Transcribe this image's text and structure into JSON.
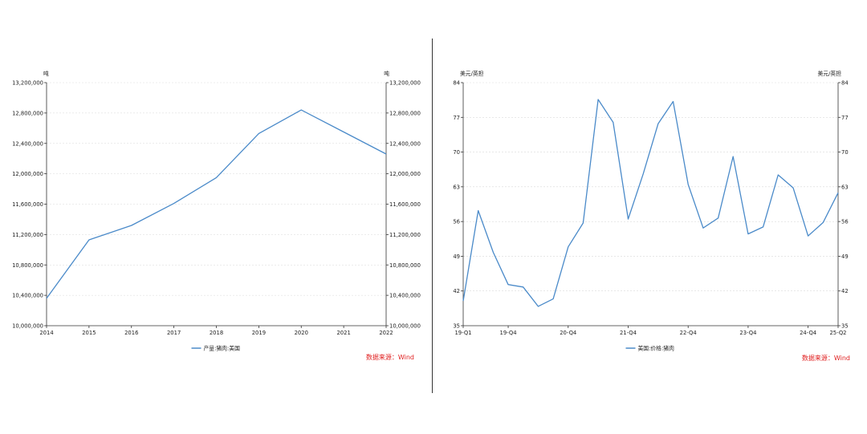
{
  "colors": {
    "line": "#4a8ac9",
    "axis": "#333333",
    "grid": "#d9d9d9",
    "source": "#e02020",
    "text": "#222222"
  },
  "chart_data": [
    {
      "type": "line",
      "left_unit": "吨",
      "right_unit": "吨",
      "x": [
        "2014",
        "2015",
        "2016",
        "2017",
        "2018",
        "2019",
        "2020",
        "2021",
        "2022"
      ],
      "series": [
        {
          "name": "产量:猪肉:美国",
          "values": [
            10360000,
            11130000,
            11320000,
            11610000,
            11950000,
            12530000,
            12840000,
            12550000,
            12260000
          ]
        }
      ],
      "ylim": [
        10000000,
        13200000
      ],
      "yticks": [
        10000000,
        10400000,
        10800000,
        11200000,
        11600000,
        12000000,
        12400000,
        12800000,
        13200000
      ],
      "ytick_labels": [
        "10,000,000",
        "10,400,000",
        "10,800,000",
        "11,200,000",
        "11,600,000",
        "12,000,000",
        "12,400,000",
        "12,800,000",
        "13,200,000"
      ],
      "legend": "bottom-center",
      "source": "数据来源：Wind",
      "grid": true
    },
    {
      "type": "line",
      "left_unit": "美元/英担",
      "right_unit": "美元/英担",
      "x_tick_labels": [
        "19-Q1",
        "19-Q4",
        "20-Q4",
        "21-Q4",
        "22-Q4",
        "23-Q4",
        "24-Q4",
        "25-Q2"
      ],
      "x_tick_index": [
        0,
        3,
        7,
        11,
        15,
        19,
        23,
        25
      ],
      "series": [
        {
          "name": "美国:价格:猪肉",
          "values": [
            40.0,
            58.2,
            49.8,
            43.3,
            42.8,
            38.9,
            40.4,
            50.9,
            55.7,
            80.6,
            76.0,
            56.5,
            65.6,
            75.7,
            80.2,
            63.5,
            54.7,
            56.7,
            69.1,
            53.5,
            54.9,
            65.4,
            62.8,
            53.1,
            55.8,
            61.8
          ]
        }
      ],
      "ylim": [
        35,
        84
      ],
      "yticks": [
        35,
        42,
        49,
        56,
        63,
        70,
        77,
        84
      ],
      "ytick_labels": [
        "35",
        "42",
        "49",
        "56",
        "63",
        "70",
        "77",
        "84"
      ],
      "legend": "bottom-center",
      "source": "数据来源：Wind",
      "grid": true
    }
  ]
}
